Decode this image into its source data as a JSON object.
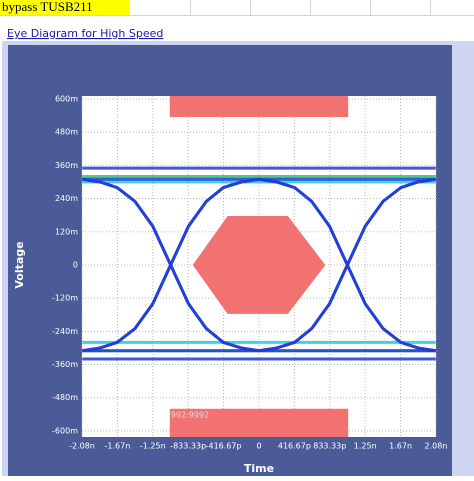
{
  "sheet": {
    "cell": "bypass TUSB211",
    "link": "Eye Diagram for High Speed"
  },
  "chart_data": {
    "type": "eye",
    "xlabel": "Time",
    "ylabel": "Voltage",
    "xlim": [
      -2.0833,
      2.0833
    ],
    "ylim": [
      -0.622,
      0.611
    ],
    "xticks": [
      {
        "value": -2.0833,
        "label": "-2.08n"
      },
      {
        "value": -1.6667,
        "label": "-1.67n"
      },
      {
        "value": -1.25,
        "label": "-1.25n"
      },
      {
        "value": -0.83333,
        "label": "-833.33p"
      },
      {
        "value": -0.41667,
        "label": "-416.67p"
      },
      0,
      {
        "value": 0.41667,
        "label": "416.67p"
      },
      {
        "value": 0.83333,
        "label": "833.33p"
      },
      {
        "value": 1.25,
        "label": "1.25n"
      },
      {
        "value": 1.6667,
        "label": "1.67n"
      },
      {
        "value": 2.0833,
        "label": "2.08n"
      }
    ],
    "yticks": [
      {
        "value": 0.6,
        "label": "600m"
      },
      {
        "value": 0.48,
        "label": "480m"
      },
      {
        "value": 0.36,
        "label": "360m"
      },
      {
        "value": 0.24,
        "label": "240m"
      },
      {
        "value": 0.12,
        "label": "120m"
      },
      0,
      {
        "value": -0.12,
        "label": "-120m"
      },
      {
        "value": -0.24,
        "label": "-240m"
      },
      {
        "value": -0.36,
        "label": "-360m"
      },
      {
        "value": -0.48,
        "label": "-480m"
      },
      {
        "value": -0.6,
        "label": "-600m"
      }
    ],
    "grid": true,
    "x": [
      -2.08,
      -1.87,
      -1.67,
      -1.46,
      -1.25,
      -1.04,
      -0.83,
      -0.62,
      -0.42,
      -0.21,
      0,
      0.21,
      0.42,
      0.62,
      0.83,
      1.04,
      1.25,
      1.46,
      1.67,
      1.87,
      2.08
    ],
    "series": [
      {
        "color": "#1e3cd6",
        "values": [
          0.35,
          0.35,
          0.35,
          0.35,
          0.35,
          0.35,
          0.35,
          0.35,
          0.35,
          0.35,
          0.35,
          0.35,
          0.35,
          0.35,
          0.35,
          0.35,
          0.35,
          0.35,
          0.35,
          0.35,
          0.35
        ]
      },
      {
        "color": "#2fc46a",
        "values": [
          0.32,
          0.32,
          0.32,
          0.32,
          0.32,
          0.32,
          0.32,
          0.32,
          0.32,
          0.32,
          0.32,
          0.32,
          0.32,
          0.32,
          0.32,
          0.32,
          0.32,
          0.32,
          0.32,
          0.32,
          0.32
        ]
      },
      {
        "color": "#22c8e0",
        "values": [
          0.3,
          0.3,
          0.3,
          0.3,
          0.3,
          0.3,
          0.3,
          0.3,
          0.3,
          0.3,
          0.3,
          0.3,
          0.3,
          0.3,
          0.3,
          0.3,
          0.3,
          0.3,
          0.3,
          0.3,
          0.3
        ]
      },
      {
        "color": "#22c8e0",
        "values": [
          -0.28,
          -0.28,
          -0.28,
          -0.28,
          -0.28,
          -0.28,
          -0.28,
          -0.28,
          -0.28,
          -0.28,
          -0.28,
          -0.28,
          -0.28,
          -0.28,
          -0.28,
          -0.28,
          -0.28,
          -0.28,
          -0.28,
          -0.28,
          -0.28
        ]
      },
      {
        "color": "#2fc46a",
        "values": [
          -0.31,
          -0.31,
          -0.31,
          -0.31,
          -0.31,
          -0.31,
          -0.31,
          -0.31,
          -0.31,
          -0.31,
          -0.31,
          -0.31,
          -0.31,
          -0.31,
          -0.31,
          -0.31,
          -0.31,
          -0.31,
          -0.31,
          -0.31,
          -0.31
        ]
      },
      {
        "color": "#1e3cd6",
        "values": [
          -0.34,
          -0.34,
          -0.34,
          -0.34,
          -0.34,
          -0.34,
          -0.34,
          -0.34,
          -0.34,
          -0.34,
          -0.34,
          -0.34,
          -0.34,
          -0.34,
          -0.34,
          -0.34,
          -0.34,
          -0.34,
          -0.34,
          -0.34,
          -0.34
        ]
      },
      {
        "color": "#1e3cd6",
        "values": [
          0.31,
          0.3,
          0.28,
          0.23,
          0.14,
          0,
          -0.14,
          -0.23,
          -0.28,
          -0.3,
          -0.31,
          -0.3,
          -0.28,
          -0.23,
          -0.14,
          0,
          0.14,
          0.23,
          0.28,
          0.3,
          0.31
        ]
      },
      {
        "color": "#1e3cd6",
        "values": [
          -0.31,
          -0.3,
          -0.28,
          -0.23,
          -0.14,
          0,
          0.14,
          0.23,
          0.28,
          0.3,
          0.31,
          0.3,
          0.28,
          0.23,
          0.14,
          0,
          -0.14,
          -0.23,
          -0.28,
          -0.3,
          -0.31
        ]
      },
      {
        "color": "#1e3cd6",
        "values": [
          0.31,
          0.3,
          0.28,
          0.23,
          0.14,
          0,
          -0.14,
          -0.23,
          -0.28,
          -0.3,
          -0.31,
          -0.31,
          -0.31,
          -0.31,
          -0.31,
          -0.31,
          -0.31,
          -0.31,
          -0.31,
          -0.31,
          -0.31
        ]
      },
      {
        "color": "#1e3cd6",
        "values": [
          -0.31,
          -0.3,
          -0.28,
          -0.23,
          -0.14,
          0,
          0.14,
          0.23,
          0.28,
          0.3,
          0.31,
          0.31,
          0.31,
          0.31,
          0.31,
          0.31,
          0.31,
          0.31,
          0.31,
          0.31,
          0.31
        ]
      },
      {
        "color": "#1e3cd6",
        "values": [
          0.31,
          0.31,
          0.31,
          0.31,
          0.31,
          0.31,
          0.31,
          0.31,
          0.31,
          0.31,
          0.31,
          0.3,
          0.28,
          0.23,
          0.14,
          0,
          -0.14,
          -0.23,
          -0.28,
          -0.3,
          -0.31
        ]
      },
      {
        "color": "#1e3cd6",
        "values": [
          -0.31,
          -0.31,
          -0.31,
          -0.31,
          -0.31,
          -0.31,
          -0.31,
          -0.31,
          -0.31,
          -0.31,
          -0.31,
          -0.3,
          -0.28,
          -0.23,
          -0.14,
          0,
          0.14,
          0.23,
          0.28,
          0.3,
          0.31
        ]
      }
    ],
    "mask_color": "#f27272",
    "mask_label": "992:9992",
    "masks": [
      {
        "x": [
          -1.05,
          1.05,
          1.05,
          -1.05
        ],
        "y": [
          0.611,
          0.611,
          0.535,
          0.535
        ]
      },
      {
        "x": [
          -0.78,
          -0.37,
          0.34,
          0.78,
          0.34,
          -0.37
        ],
        "y": [
          0,
          0.177,
          0.177,
          0,
          -0.177,
          -0.177
        ]
      },
      {
        "x": [
          -1.05,
          1.05,
          1.05,
          -1.05
        ],
        "y": [
          -0.52,
          -0.52,
          -0.622,
          -0.622
        ]
      }
    ]
  }
}
